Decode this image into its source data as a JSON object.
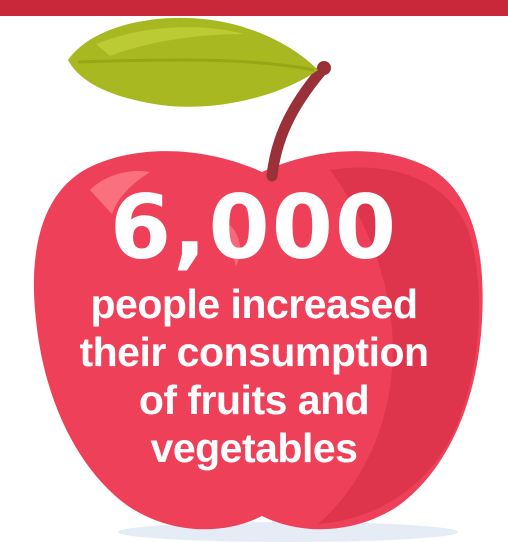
{
  "stat": {
    "number": "6,000",
    "caption_lines": [
      "people increased",
      "their consumption",
      "of fruits and",
      "vegetables"
    ]
  },
  "colors": {
    "apple": "#ef4059",
    "apple_shadow": "#d83048",
    "leaf": "#a8b820",
    "leaf_highlight": "#b9c93a",
    "stem": "#9a3038",
    "top_band": "#c8283a"
  },
  "icons": {
    "illustration": "apple-icon"
  }
}
